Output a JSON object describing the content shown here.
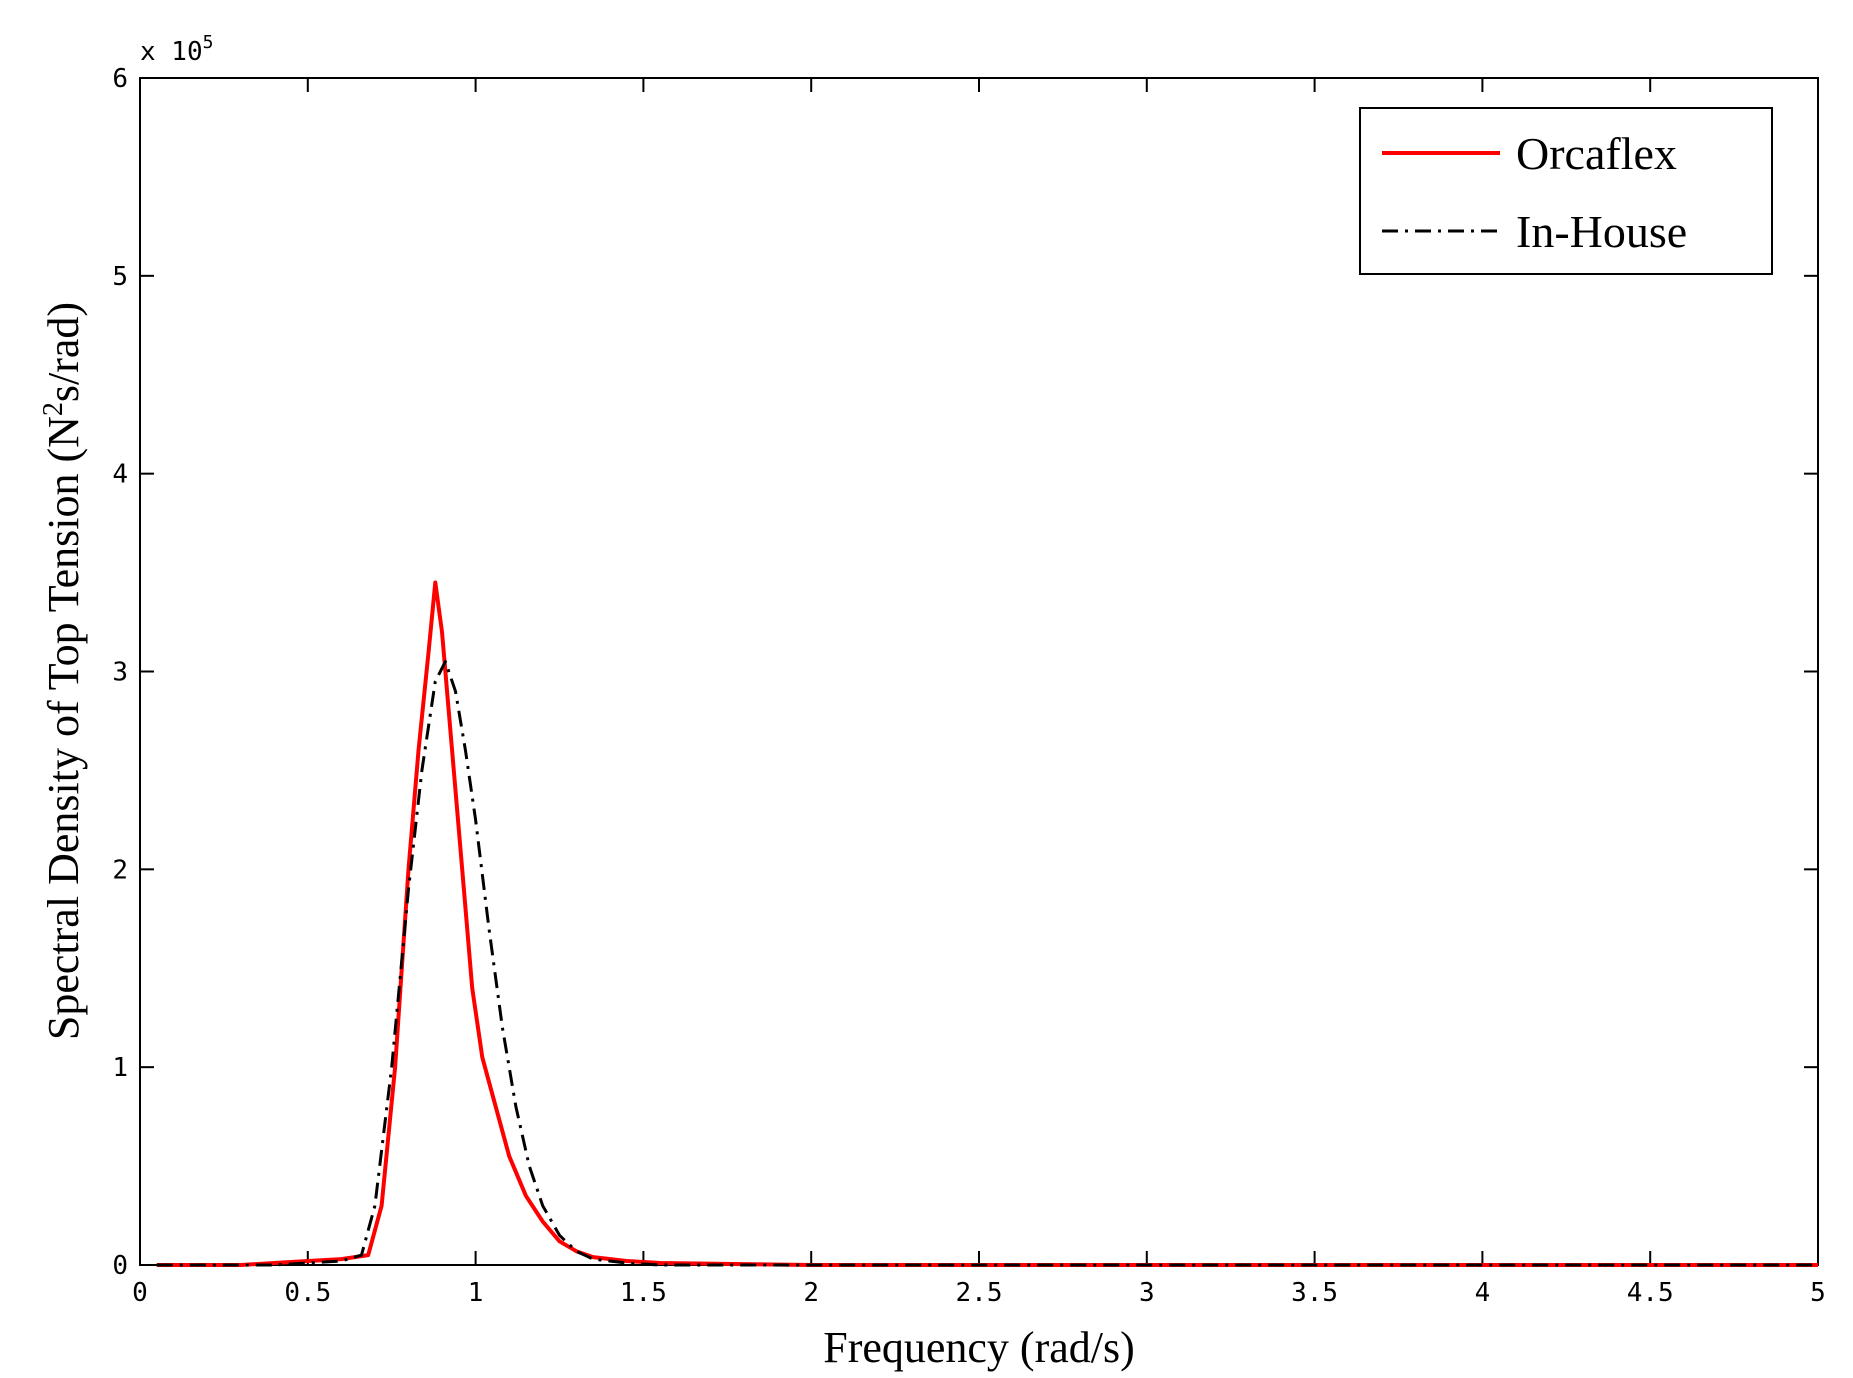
{
  "chart_data": {
    "type": "line",
    "xlabel": "Frequency (rad/s)",
    "ylabel_main": "Spectral Density of Top Tension (N",
    "ylabel_sup": "2",
    "ylabel_tail": "s/rad)",
    "y_multiplier_label": "x 10",
    "y_multiplier_exp": "5",
    "xlim": [
      0,
      5
    ],
    "ylim": [
      0,
      6
    ],
    "x_ticks": [
      0,
      0.5,
      1,
      1.5,
      2,
      2.5,
      3,
      3.5,
      4,
      4.5,
      5
    ],
    "x_tick_labels": [
      "0",
      "0.5",
      "1",
      "1.5",
      "2",
      "2.5",
      "3",
      "3.5",
      "4",
      "4.5",
      "5"
    ],
    "y_ticks": [
      0,
      1,
      2,
      3,
      4,
      5,
      6
    ],
    "y_tick_labels": [
      "0",
      "1",
      "2",
      "3",
      "4",
      "5",
      "6"
    ],
    "grid": false,
    "legend_position": "top-right",
    "series": [
      {
        "name": "Orcaflex",
        "color": "#ff0000",
        "style": "solid",
        "x": [
          0.05,
          0.3,
          0.4,
          0.5,
          0.6,
          0.68,
          0.72,
          0.76,
          0.8,
          0.83,
          0.86,
          0.88,
          0.9,
          0.93,
          0.96,
          0.99,
          1.02,
          1.06,
          1.1,
          1.15,
          1.2,
          1.25,
          1.3,
          1.35,
          1.45,
          1.55,
          2.0,
          3.0,
          4.0,
          5.0
        ],
        "y": [
          0.0,
          0.0,
          0.01,
          0.02,
          0.03,
          0.05,
          0.3,
          1.0,
          2.0,
          2.6,
          3.1,
          3.45,
          3.2,
          2.6,
          2.0,
          1.4,
          1.05,
          0.8,
          0.55,
          0.35,
          0.22,
          0.12,
          0.07,
          0.04,
          0.02,
          0.01,
          0.0,
          0.0,
          0.0,
          0.0
        ]
      },
      {
        "name": "In-House",
        "color": "#000000",
        "style": "dash-dot",
        "x": [
          0.05,
          0.3,
          0.4,
          0.5,
          0.6,
          0.66,
          0.7,
          0.75,
          0.8,
          0.84,
          0.88,
          0.91,
          0.94,
          0.97,
          1.0,
          1.04,
          1.08,
          1.12,
          1.16,
          1.2,
          1.25,
          1.3,
          1.35,
          1.45,
          1.55,
          2.0,
          3.0,
          4.0,
          5.0
        ],
        "y": [
          0.0,
          0.0,
          0.0,
          0.01,
          0.02,
          0.05,
          0.3,
          1.0,
          1.9,
          2.5,
          2.95,
          3.05,
          2.9,
          2.6,
          2.25,
          1.7,
          1.2,
          0.8,
          0.5,
          0.3,
          0.15,
          0.07,
          0.03,
          0.01,
          0.0,
          0.0,
          0.0,
          0.0,
          0.0
        ]
      }
    ]
  }
}
